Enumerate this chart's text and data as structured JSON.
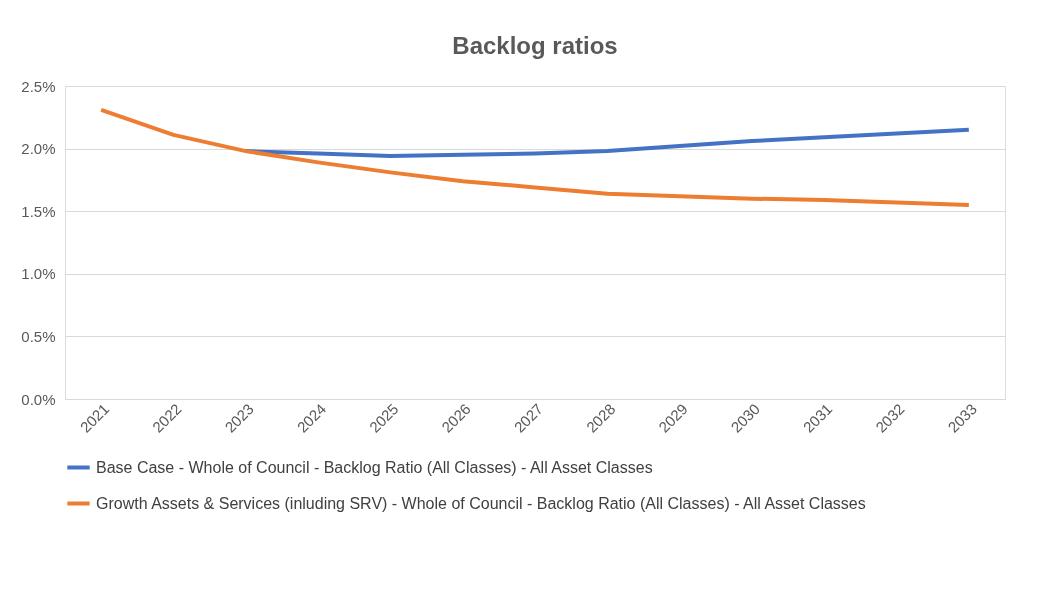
{
  "chart_data": {
    "type": "line",
    "title": "Backlog ratios",
    "categories": [
      "2021",
      "2022",
      "2023",
      "2024",
      "2025",
      "2026",
      "2027",
      "2028",
      "2029",
      "2030",
      "2031",
      "2032",
      "2033"
    ],
    "series": [
      {
        "name": "Base Case - Whole of Council - Backlog Ratio (All Classes) - All Asset Classes",
        "color": "#4472c4",
        "values": [
          null,
          null,
          1.98,
          1.96,
          1.94,
          1.95,
          1.96,
          1.98,
          2.02,
          2.06,
          2.09,
          2.12,
          2.15
        ]
      },
      {
        "name": "Growth Assets & Services (inluding SRV) - Whole of Council - Backlog Ratio (All Classes) - All Asset Classes",
        "color": "#ed7d31",
        "values": [
          2.31,
          2.11,
          1.98,
          1.89,
          1.81,
          1.74,
          1.69,
          1.64,
          1.62,
          1.6,
          1.59,
          1.57,
          1.55
        ]
      }
    ],
    "ylim": [
      0,
      2.5
    ],
    "yticks": [
      {
        "value": 0,
        "label": "0.0%"
      },
      {
        "value": 0.5,
        "label": "0.5%"
      },
      {
        "value": 1,
        "label": "1.0%"
      },
      {
        "value": 1.5,
        "label": "1.5%"
      },
      {
        "value": 2,
        "label": "2.0%"
      },
      {
        "value": 2.5,
        "label": "2.5%"
      }
    ],
    "grid": "y",
    "legend": "bottom",
    "marker": "none",
    "line_style": "solid"
  }
}
